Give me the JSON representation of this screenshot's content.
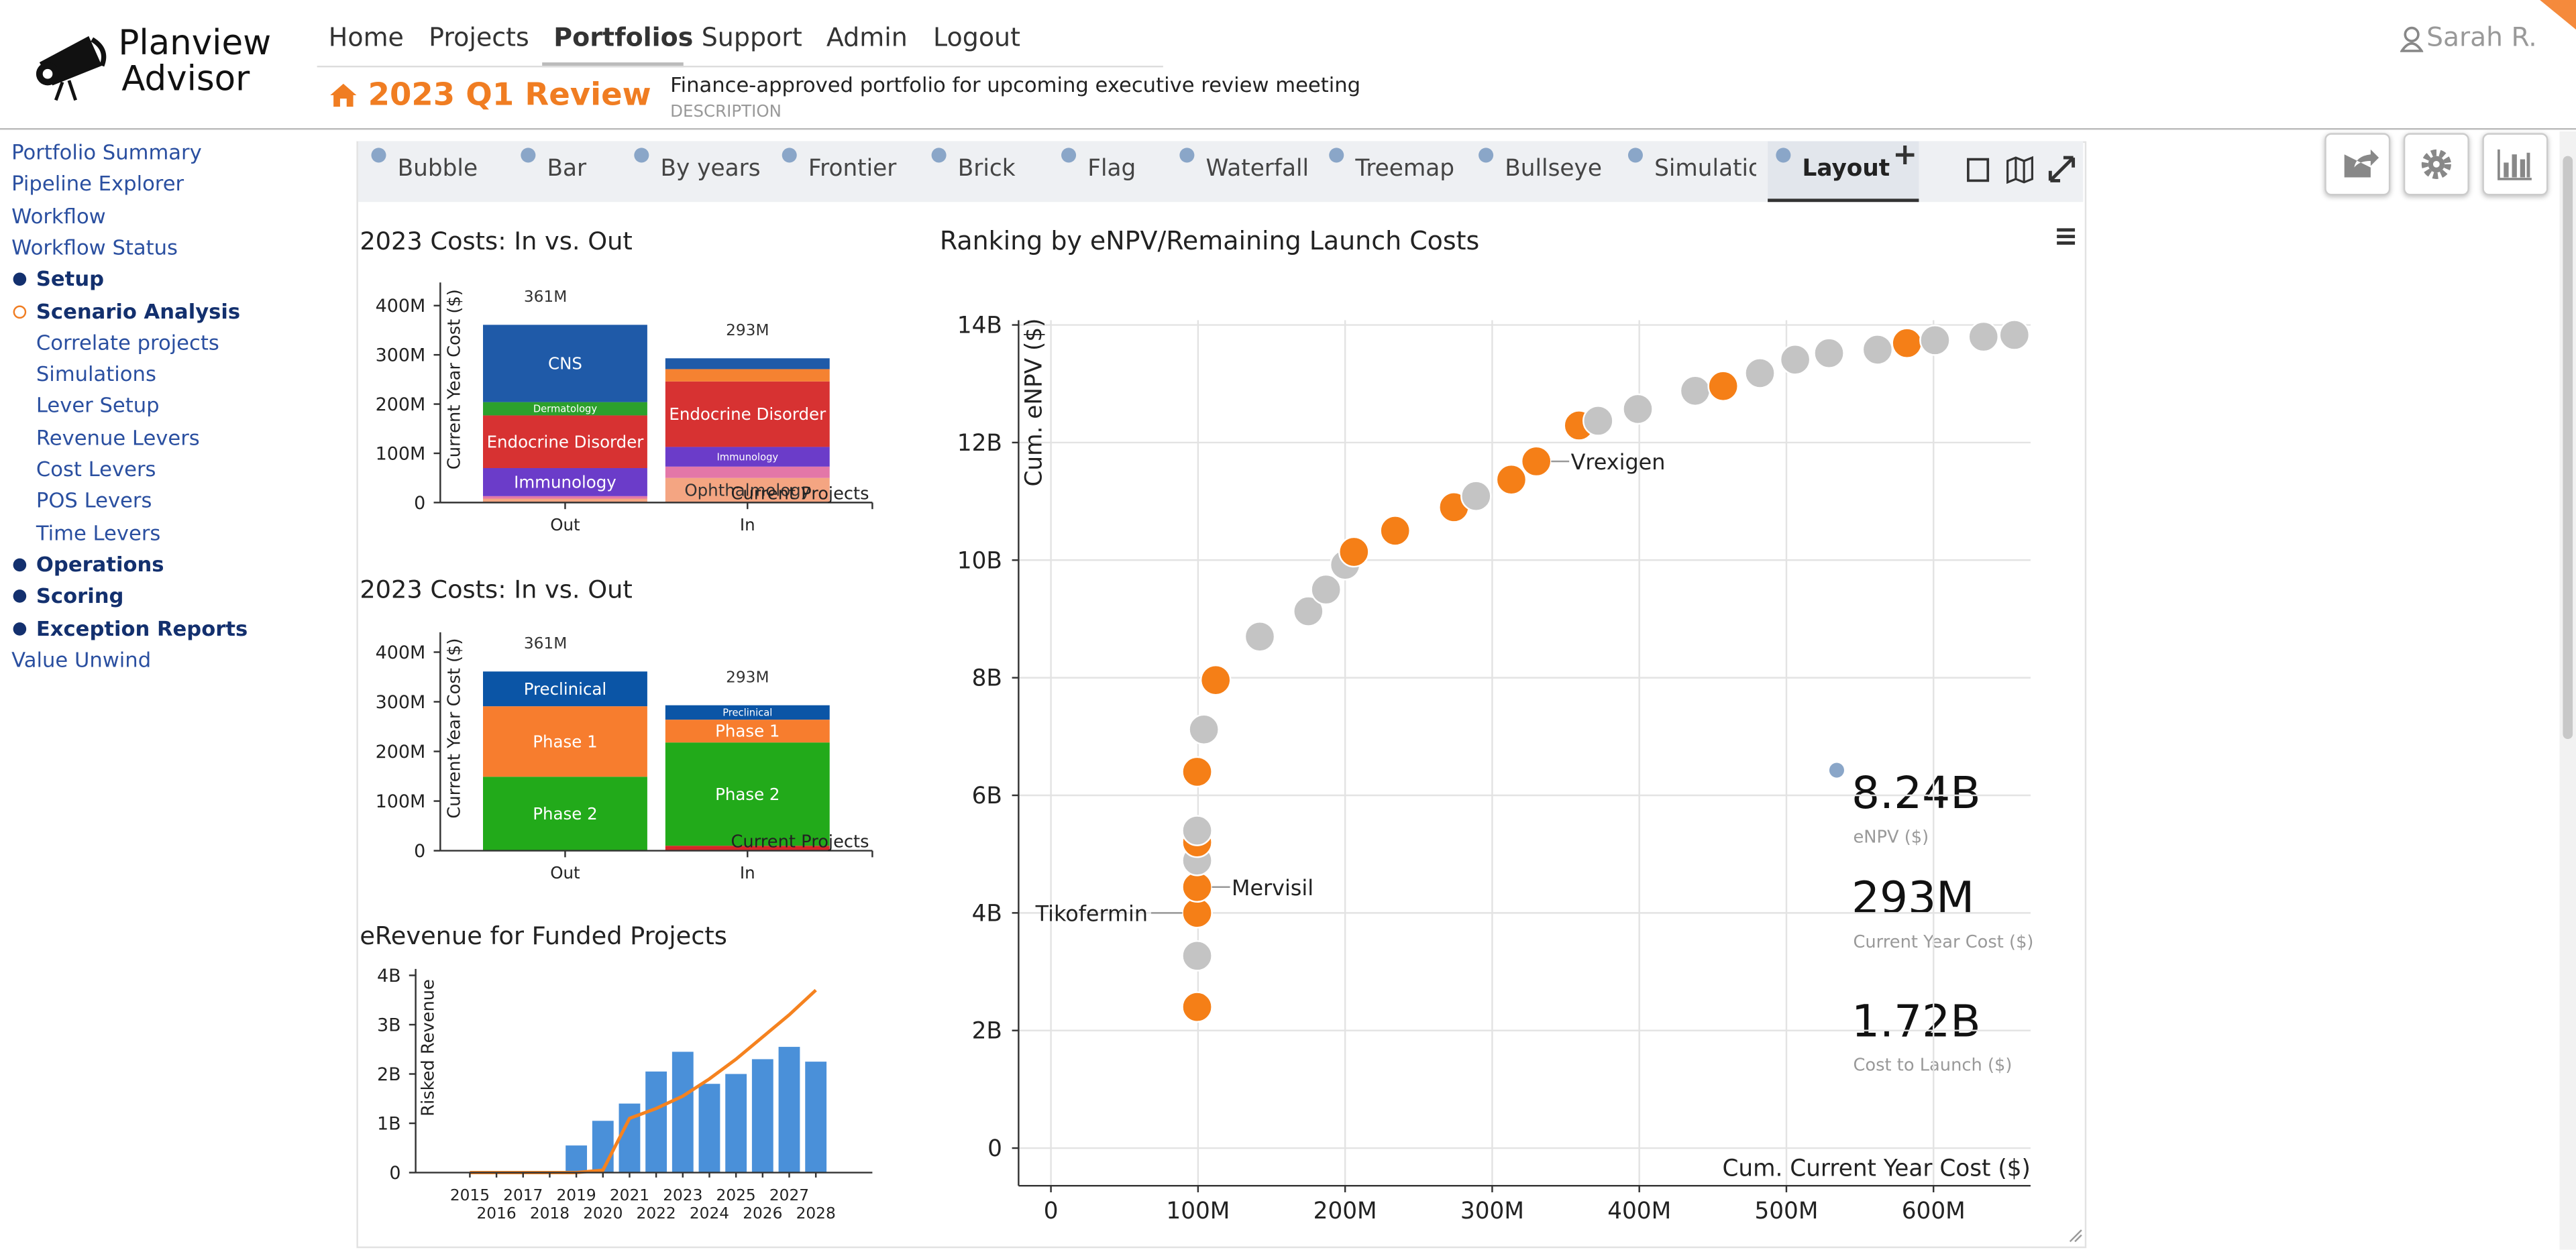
{
  "header": {
    "logo": [
      "Planview",
      "Advisor"
    ],
    "nav": [
      "Home",
      "Projects",
      "Portfolios",
      "Support",
      "Admin",
      "Logout"
    ],
    "active_nav": 2,
    "user": "Sarah R.",
    "title": "2023 Q1 Review",
    "description": "Finance-approved portfolio for upcoming executive review meeting",
    "description_label": "DESCRIPTION"
  },
  "sidebar": [
    {
      "label": "Portfolio Summary"
    },
    {
      "label": "Pipeline Explorer"
    },
    {
      "label": "Workflow"
    },
    {
      "label": "Workflow Status"
    },
    {
      "label": "Setup",
      "bullet": "filled"
    },
    {
      "label": "Scenario Analysis",
      "bullet": "open",
      "items": [
        "Correlate projects",
        "Simulations",
        "Lever Setup",
        "Revenue Levers",
        "Cost Levers",
        "POS Levers",
        "Time Levers"
      ]
    },
    {
      "label": "Operations",
      "bullet": "filled"
    },
    {
      "label": "Scoring",
      "bullet": "filled"
    },
    {
      "label": "Exception Reports",
      "bullet": "filled"
    },
    {
      "label": "Value Unwind"
    }
  ],
  "tabs": {
    "items": [
      "Bubble",
      "Bar",
      "By years",
      "Frontier",
      "Brick",
      "Flag",
      "Waterfall",
      "Treemap",
      "Bullseye",
      "Simulatio",
      "Layout"
    ],
    "active": 10
  },
  "chart_data": [
    {
      "type": "stacked_bar",
      "title": "2023 Costs: In vs. Out",
      "y_label": "Current Year Cost ($)",
      "annotation": "Current Projects",
      "categories": [
        "Out",
        "In"
      ],
      "total_labels": [
        "361M",
        "293M"
      ],
      "series": [
        {
          "name": "Ophthalmology",
          "color": "#f4a582",
          "values": [
            8000000,
            50000000
          ]
        },
        {
          "name": null,
          "color": "#e377a8",
          "values": [
            5000000,
            23000000
          ]
        },
        {
          "name": "Immunology",
          "color": "#6b3cc9",
          "values": [
            57000000,
            40000000
          ]
        },
        {
          "name": "Endocrine Disorder",
          "color": "#d73232",
          "values": [
            107000000,
            133000000
          ]
        },
        {
          "name": "Dermatology",
          "color": "#2ca02c",
          "values": [
            27000000,
            0
          ]
        },
        {
          "name": null,
          "color": "#f58231",
          "values": [
            0,
            25000000
          ]
        },
        {
          "name": "CNS",
          "color": "#1f5aa8",
          "values": [
            157000000,
            22000000
          ]
        }
      ],
      "ylim": [
        0,
        447000000
      ],
      "yticks": [
        0,
        {
          "value": 100000000,
          "label": "100M"
        },
        {
          "value": 200000000,
          "label": "200M"
        },
        {
          "value": 300000000,
          "label": "300M"
        },
        {
          "value": 400000000,
          "label": "400M"
        }
      ]
    },
    {
      "type": "stacked_bar",
      "title": "2023 Costs: In vs. Out",
      "y_label": "Current Year Cost ($)",
      "annotation": "Current Projects",
      "categories": [
        "Out",
        "In"
      ],
      "total_labels": [
        "361M",
        "293M"
      ],
      "series": [
        {
          "name": null,
          "color": "#d62728",
          "values": [
            0,
            10000000
          ]
        },
        {
          "name": "Phase 2",
          "color": "#22aa1a",
          "values": [
            149000000,
            208000000
          ]
        },
        {
          "name": "Phase 1",
          "color": "#f77d2e",
          "values": [
            142000000,
            46000000
          ]
        },
        {
          "name": "Preclinical",
          "color": "#0b55a6",
          "values": [
            70000000,
            29000000
          ]
        }
      ],
      "ylim": [
        0,
        440000000
      ],
      "yticks": [
        0,
        {
          "value": 100000000,
          "label": "100M"
        },
        {
          "value": 200000000,
          "label": "200M"
        },
        {
          "value": 300000000,
          "label": "300M"
        },
        {
          "value": 400000000,
          "label": "400M"
        }
      ]
    },
    {
      "type": "bar_line",
      "title": "eRevenue for Funded Projects",
      "y_label": "Risked Revenue",
      "categories": [
        "2015",
        "2016",
        "2017",
        "2018",
        "2019",
        "2020",
        "2021",
        "2022",
        "2023",
        "2024",
        "2025",
        "2026",
        "2027",
        "2028"
      ],
      "series": [
        {
          "type": "bar",
          "color": "#4a90d9",
          "values": [
            0,
            0,
            0,
            0,
            550000000,
            1050000000,
            1400000000,
            2050000000,
            2450000000,
            1800000000,
            2000000000,
            2300000000,
            2550000000,
            2250000000
          ]
        },
        {
          "type": "line",
          "color": "#f5821f",
          "values": [
            0,
            0,
            0,
            0,
            0,
            50000000,
            1100000000,
            1300000000,
            1550000000,
            1900000000,
            2300000000,
            2750000000,
            3200000000,
            3700000000
          ]
        }
      ],
      "ylim": [
        0,
        4130000000
      ],
      "yticks": [
        0,
        {
          "value": 1000000000,
          "label": "1B"
        },
        {
          "value": 2000000000,
          "label": "2B"
        },
        {
          "value": 3000000000,
          "label": "3B"
        },
        {
          "value": 4000000000,
          "label": "4B"
        }
      ]
    },
    {
      "type": "scatter",
      "title": "Ranking by eNPV/Remaining Launch Costs",
      "x_label": "Cum. Current Year Cost ($)",
      "y_label": "Cum. eNPV ($)",
      "grid": true,
      "x": [
        99400000,
        99400000,
        99400000,
        99400000,
        99400000,
        99400000,
        99400000,
        99400000,
        104000000,
        112000000,
        142000000,
        175000000,
        187000000,
        200000000,
        206000000,
        234000000,
        274000000,
        289000000,
        313000000,
        330000000,
        359000000,
        372000000,
        399000000,
        438000000,
        457000000,
        482000000,
        506000000,
        529000000,
        562000000,
        582000000,
        601000000,
        634000000,
        655000000
      ],
      "values": [
        2400000000,
        3270000000,
        4000000000,
        4440000000,
        4890000000,
        5200000000,
        5400000000,
        6400000000,
        7120000000,
        7960000000,
        8700000000,
        9130000000,
        9500000000,
        9920000000,
        10140000000,
        10500000000,
        10900000000,
        11090000000,
        11370000000,
        11680000000,
        12290000000,
        12370000000,
        12570000000,
        12880000000,
        12960000000,
        13180000000,
        13410000000,
        13520000000,
        13580000000,
        13690000000,
        13740000000,
        13800000000,
        13830000000
      ],
      "colors": [
        "#f57f17",
        "#c4c4c4",
        "#f57f17",
        "#f57f17",
        "#c4c4c4",
        "#f57f17",
        "#c4c4c4",
        "#f57f17",
        "#c4c4c4",
        "#f57f17",
        "#c4c4c4",
        "#c4c4c4",
        "#c4c4c4",
        "#c4c4c4",
        "#f57f17",
        "#f57f17",
        "#f57f17",
        "#c4c4c4",
        "#f57f17",
        "#f57f17",
        "#f57f17",
        "#c4c4c4",
        "#c4c4c4",
        "#c4c4c4",
        "#f57f17",
        "#c4c4c4",
        "#c4c4c4",
        "#c4c4c4",
        "#c4c4c4",
        "#f57f17",
        "#c4c4c4",
        "#c4c4c4",
        "#c4c4c4"
      ],
      "annotations": [
        {
          "label": "Vrexigen",
          "point": 19,
          "side": "right"
        },
        {
          "label": "Mervisil",
          "point": 3,
          "side": "right"
        },
        {
          "label": "Tikofermin",
          "point": 2,
          "side": "left"
        }
      ],
      "xlim": [
        -22000000,
        666000000
      ],
      "xticks": [
        0,
        {
          "value": 100000000,
          "label": "100M"
        },
        {
          "value": 200000000,
          "label": "200M"
        },
        {
          "value": 300000000,
          "label": "300M"
        },
        {
          "value": 400000000,
          "label": "400M"
        },
        {
          "value": 500000000,
          "label": "500M"
        },
        {
          "value": 600000000,
          "label": "600M"
        }
      ],
      "ylim": [
        -640000000,
        14080000000
      ],
      "yticks": [
        0,
        {
          "value": 2000000000,
          "label": "2B"
        },
        {
          "value": 4000000000,
          "label": "4B"
        },
        {
          "value": 6000000000,
          "label": "6B"
        },
        {
          "value": 8000000000,
          "label": "8B"
        },
        {
          "value": 10000000000,
          "label": "10B"
        },
        {
          "value": 12000000000,
          "label": "12B"
        },
        {
          "value": 14000000000,
          "label": "14B"
        }
      ]
    }
  ],
  "stats": [
    {
      "value": "8.24B",
      "label": "eNPV ($)"
    },
    {
      "value": "293M",
      "label": "Current Year Cost ($)"
    },
    {
      "value": "1.72B",
      "label": "Cost to Launch ($)"
    }
  ]
}
